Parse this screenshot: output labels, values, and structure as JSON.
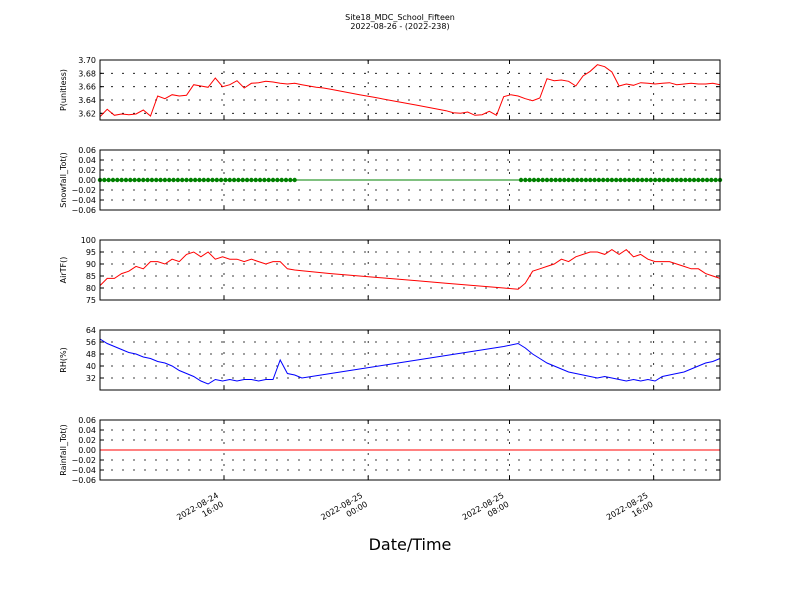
{
  "title": "Site18_MDC_School_Fifteen",
  "subtitle": "2022-08-26 - (2022-238)",
  "xlabel": "Date/Time",
  "colors": {
    "red": "#ff0000",
    "green": "#008000",
    "blue": "#0000ff",
    "grid": "#000000"
  },
  "chart_data": [
    {
      "type": "line",
      "ylabel": "P(unitless)",
      "ylim": [
        3.61,
        3.7
      ],
      "yticks": [
        "3.62",
        "3.64",
        "3.66",
        "3.68",
        "3.70"
      ],
      "ytick_values": [
        3.62,
        3.64,
        3.66,
        3.68,
        3.7
      ],
      "grid": true,
      "series": [
        {
          "color": "#ff0000",
          "x": [
            0,
            0.25,
            0.5,
            0.75,
            1,
            1.25,
            1.5,
            1.75,
            2,
            2.25,
            2.5,
            2.75,
            3,
            3.25,
            3.5,
            3.75,
            4,
            4.25,
            4.5,
            4.75,
            5,
            5.25,
            5.5,
            5.75,
            6,
            6.25,
            6.5,
            6.75,
            7,
            7.25,
            7.5,
            7.75,
            8,
            8.5,
            9,
            9.5,
            10,
            11,
            12,
            12.25,
            12.5,
            12.75,
            13,
            13.25,
            13.5,
            13.75,
            14,
            14.25,
            14.5,
            14.75,
            15,
            15.25,
            15.5,
            15.75,
            16,
            16.25,
            16.5,
            16.75,
            17,
            17.25,
            17.5,
            17.75,
            18,
            18.25,
            18.5,
            18.75,
            19,
            19.25,
            19.5,
            19.75,
            20,
            20.25,
            20.5,
            20.75,
            21,
            21.25,
            21.5
          ],
          "y": [
            3.615,
            3.626,
            3.617,
            3.619,
            3.618,
            3.619,
            3.625,
            3.616,
            3.646,
            3.642,
            3.648,
            3.646,
            3.647,
            3.663,
            3.661,
            3.659,
            3.673,
            3.66,
            3.663,
            3.669,
            3.658,
            3.665,
            3.666,
            3.668,
            3.667,
            3.665,
            3.664,
            3.665,
            3.663,
            3.661,
            3.659,
            3.658,
            3.656,
            3.652,
            3.648,
            3.644,
            3.64,
            3.632,
            3.624,
            3.621,
            3.62,
            3.622,
            3.617,
            3.618,
            3.623,
            3.617,
            3.645,
            3.648,
            3.646,
            3.642,
            3.639,
            3.643,
            3.672,
            3.669,
            3.67,
            3.668,
            3.661,
            3.676,
            3.683,
            3.693,
            3.69,
            3.682,
            3.661,
            3.664,
            3.662,
            3.666,
            3.665,
            3.664,
            3.665,
            3.666,
            3.663,
            3.664,
            3.665,
            3.664,
            3.664,
            3.665,
            3.663
          ]
        }
      ]
    },
    {
      "type": "scatter",
      "ylabel": "Snowfall_Tot()",
      "ylim": [
        -0.06,
        0.06
      ],
      "yticks": [
        "0.06",
        "0.04",
        "0.02",
        "0.00",
        "−0.02",
        "−0.04",
        "−0.06"
      ],
      "ytick_values": [
        0.06,
        0.04,
        0.02,
        0.0,
        -0.02,
        -0.04,
        -0.06
      ],
      "grid": true,
      "series": [
        {
          "color": "#008000",
          "line_x": [
            0,
            21.5
          ],
          "line_y": [
            0,
            0
          ],
          "dot_ranges": [
            [
              0,
              6.8
            ],
            [
              14.6,
              21.5
            ]
          ],
          "dot_step": 0.15,
          "y": 0
        }
      ]
    },
    {
      "type": "line",
      "ylabel": "AirTF()",
      "ylim": [
        75,
        100
      ],
      "yticks": [
        "75",
        "80",
        "85",
        "90",
        "95",
        "100"
      ],
      "ytick_values": [
        75,
        80,
        85,
        90,
        95,
        100
      ],
      "grid": true,
      "series": [
        {
          "color": "#ff0000",
          "x": [
            0,
            0.25,
            0.5,
            0.75,
            1,
            1.25,
            1.5,
            1.75,
            2,
            2.25,
            2.5,
            2.75,
            3,
            3.25,
            3.5,
            3.75,
            4,
            4.25,
            4.5,
            4.75,
            5,
            5.25,
            5.5,
            5.75,
            6,
            6.25,
            6.5,
            6.75,
            7,
            8,
            9,
            10,
            11,
            12,
            13,
            14,
            14.5,
            14.75,
            15,
            15.25,
            15.5,
            15.75,
            16,
            16.25,
            16.5,
            16.75,
            17,
            17.25,
            17.5,
            17.75,
            18,
            18.25,
            18.5,
            18.75,
            19,
            19.25,
            19.5,
            19.75,
            20,
            20.25,
            20.5,
            20.75,
            21,
            21.25,
            21.5
          ],
          "y": [
            81,
            84,
            84,
            86,
            87,
            89,
            88,
            91,
            91,
            90,
            92,
            91,
            94,
            95,
            93,
            95,
            92,
            93,
            92,
            92,
            91,
            92,
            91,
            90,
            91,
            91,
            88,
            87.5,
            87.2,
            86,
            85,
            84,
            83,
            82,
            81,
            80,
            79.5,
            82,
            87,
            88,
            89,
            90,
            92,
            91,
            93,
            94,
            95,
            95,
            94,
            96,
            94,
            96,
            93,
            94,
            92,
            91,
            91,
            91,
            90,
            89,
            88,
            88,
            86,
            85,
            84
          ]
        }
      ]
    },
    {
      "type": "line",
      "ylabel": "RH(%)",
      "ylim": [
        24,
        64
      ],
      "yticks": [
        "32",
        "40",
        "48",
        "56",
        "64"
      ],
      "ytick_values": [
        32,
        40,
        48,
        56,
        64
      ],
      "grid": true,
      "series": [
        {
          "color": "#0000ff",
          "x": [
            0,
            0.25,
            0.5,
            0.75,
            1,
            1.25,
            1.5,
            1.75,
            2,
            2.25,
            2.5,
            2.75,
            3,
            3.25,
            3.5,
            3.75,
            4,
            4.25,
            4.5,
            4.75,
            5,
            5.25,
            5.5,
            5.75,
            6,
            6.25,
            6.5,
            6.75,
            7,
            8,
            9,
            10,
            11,
            12,
            13,
            14,
            14.5,
            14.75,
            15,
            15.25,
            15.5,
            15.75,
            16,
            16.25,
            16.5,
            16.75,
            17,
            17.25,
            17.5,
            17.75,
            18,
            18.25,
            18.5,
            18.75,
            19,
            19.25,
            19.5,
            19.75,
            20,
            20.25,
            20.5,
            20.75,
            21,
            21.25,
            21.5
          ],
          "y": [
            58,
            55,
            53,
            51,
            49,
            48,
            46,
            45,
            43,
            42,
            40,
            37,
            35,
            33,
            30,
            28,
            31,
            30,
            31,
            30,
            31,
            31,
            30,
            31,
            31,
            44,
            35,
            34,
            32,
            35,
            38,
            41,
            44,
            47,
            50,
            53,
            55,
            52,
            48,
            45,
            42,
            40,
            38,
            36,
            35,
            34,
            33,
            32,
            33,
            32,
            31,
            30,
            31,
            30,
            31,
            30,
            33,
            34,
            35,
            36,
            38,
            40,
            42,
            43,
            45
          ]
        }
      ]
    },
    {
      "type": "line",
      "ylabel": "Rainfall_Tot()",
      "ylim": [
        -0.06,
        0.06
      ],
      "yticks": [
        "0.06",
        "0.04",
        "0.02",
        "0.00",
        "−0.02",
        "−0.04",
        "−0.06"
      ],
      "ytick_values": [
        0.06,
        0.04,
        0.02,
        0.0,
        -0.02,
        -0.04,
        -0.06
      ],
      "grid": true,
      "series": [
        {
          "color": "#ff0000",
          "x": [
            0,
            21.5
          ],
          "y": [
            0,
            0
          ]
        }
      ]
    }
  ],
  "xaxis": {
    "xlim": [
      0,
      21.5
    ],
    "ticks": [
      {
        "x": 4.3,
        "line1": "2022-08-24",
        "line2": "16:00"
      },
      {
        "x": 9.3,
        "line1": "2022-08-25",
        "line2": "00:00"
      },
      {
        "x": 14.2,
        "line1": "2022-08-25",
        "line2": "08:00"
      },
      {
        "x": 19.2,
        "line1": "2022-08-25",
        "line2": "16:00"
      }
    ]
  }
}
